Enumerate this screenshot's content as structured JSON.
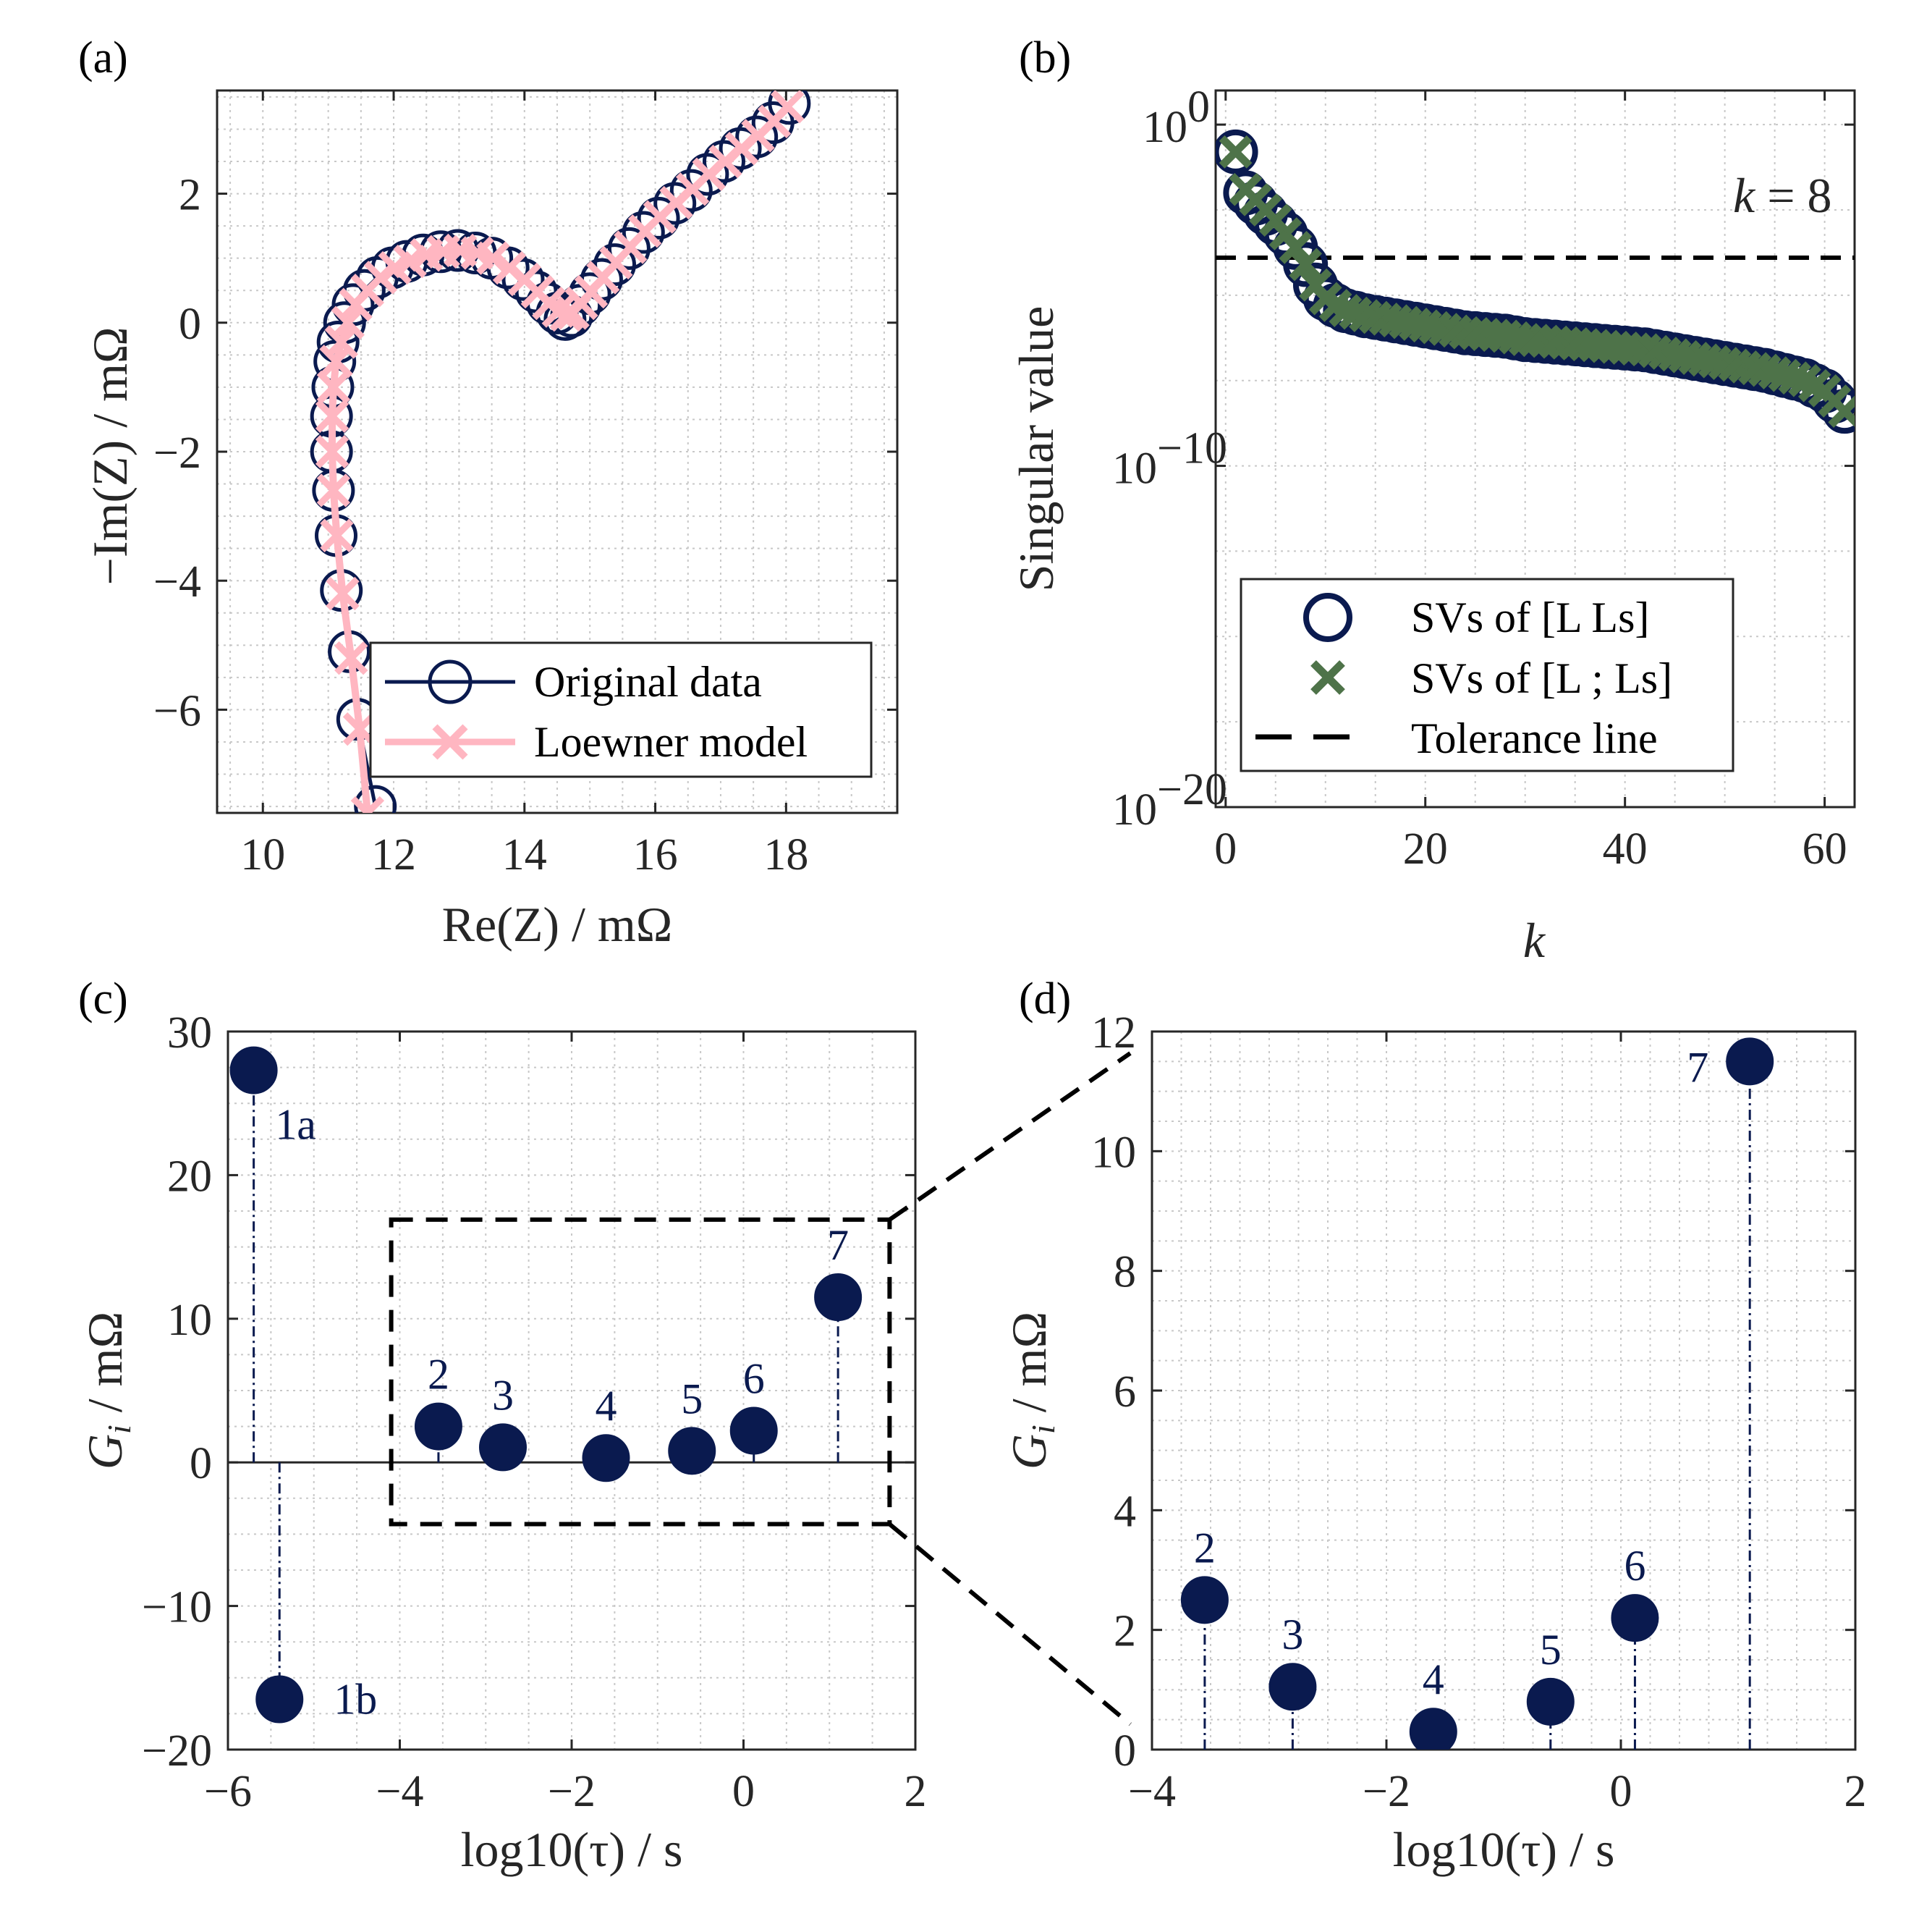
{
  "colors": {
    "navy": "#0a1a4f",
    "pink": "#ffb6c1",
    "green": "#4e7349",
    "grid": "#c8c8c8",
    "axis": "#262626"
  },
  "chart_data": [
    {
      "panel": "(a)",
      "type": "line",
      "xlabel": "Re(Z) / mΩ",
      "ylabel": "−Im(Z) / mΩ",
      "xlim": [
        9.3,
        19.7
      ],
      "ylim": [
        -7.6,
        3.6
      ],
      "xticks": [
        10,
        12,
        14,
        16,
        18
      ],
      "yticks": [
        -6,
        -4,
        -2,
        0,
        2
      ],
      "xtick_labels": [
        "10",
        "12",
        "14",
        "16",
        "18"
      ],
      "ytick_labels": [
        "−6",
        "−4",
        "−2",
        "0",
        "2"
      ],
      "grid": "minor dotted",
      "legend_position": "bottom-right",
      "series": [
        {
          "name": "Original data",
          "marker": "circle",
          "points": [
            [
              11.72,
              -7.5
            ],
            [
              11.45,
              -6.15
            ],
            [
              11.32,
              -5.1
            ],
            [
              11.2,
              -4.15
            ],
            [
              11.12,
              -3.3
            ],
            [
              11.08,
              -2.6
            ],
            [
              11.05,
              -2.0
            ],
            [
              11.05,
              -1.45
            ],
            [
              11.07,
              -1.0
            ],
            [
              11.1,
              -0.6
            ],
            [
              11.15,
              -0.3
            ],
            [
              11.25,
              0.0
            ],
            [
              11.38,
              0.28
            ],
            [
              11.55,
              0.5
            ],
            [
              11.75,
              0.7
            ],
            [
              11.98,
              0.85
            ],
            [
              12.2,
              0.95
            ],
            [
              12.45,
              1.05
            ],
            [
              12.72,
              1.1
            ],
            [
              12.98,
              1.12
            ],
            [
              13.25,
              1.08
            ],
            [
              13.5,
              1.0
            ],
            [
              13.75,
              0.85
            ],
            [
              13.98,
              0.67
            ],
            [
              14.18,
              0.48
            ],
            [
              14.35,
              0.3
            ],
            [
              14.5,
              0.15
            ],
            [
              14.62,
              0.05
            ],
            [
              14.72,
              0.1
            ],
            [
              14.85,
              0.27
            ],
            [
              15.0,
              0.45
            ],
            [
              15.18,
              0.67
            ],
            [
              15.38,
              0.9
            ],
            [
              15.6,
              1.15
            ],
            [
              15.82,
              1.4
            ],
            [
              16.05,
              1.62
            ],
            [
              16.3,
              1.85
            ],
            [
              16.55,
              2.05
            ],
            [
              16.8,
              2.3
            ],
            [
              17.05,
              2.5
            ],
            [
              17.3,
              2.7
            ],
            [
              17.55,
              2.88
            ],
            [
              17.8,
              3.1
            ],
            [
              18.05,
              3.4
            ]
          ]
        },
        {
          "name": "Loewner model",
          "marker": "x",
          "points": [
            [
              11.6,
              -7.6
            ],
            [
              11.48,
              -6.3
            ],
            [
              11.35,
              -5.2
            ],
            [
              11.22,
              -4.2
            ],
            [
              11.13,
              -3.3
            ],
            [
              11.08,
              -2.6
            ],
            [
              11.06,
              -2.0
            ],
            [
              11.06,
              -1.45
            ],
            [
              11.08,
              -1.0
            ],
            [
              11.12,
              -0.6
            ],
            [
              11.2,
              -0.3
            ],
            [
              11.3,
              0.0
            ],
            [
              11.42,
              0.28
            ],
            [
              11.6,
              0.5
            ],
            [
              11.8,
              0.7
            ],
            [
              12.02,
              0.85
            ],
            [
              12.25,
              0.95
            ],
            [
              12.5,
              1.05
            ],
            [
              12.76,
              1.1
            ],
            [
              13.02,
              1.12
            ],
            [
              13.28,
              1.08
            ],
            [
              13.52,
              1.0
            ],
            [
              13.77,
              0.85
            ],
            [
              14.0,
              0.67
            ],
            [
              14.2,
              0.48
            ],
            [
              14.37,
              0.3
            ],
            [
              14.52,
              0.18
            ],
            [
              14.64,
              0.12
            ],
            [
              14.74,
              0.15
            ],
            [
              14.87,
              0.3
            ],
            [
              15.02,
              0.48
            ],
            [
              15.2,
              0.7
            ],
            [
              15.4,
              0.93
            ],
            [
              15.62,
              1.17
            ],
            [
              15.84,
              1.42
            ],
            [
              16.07,
              1.64
            ],
            [
              16.32,
              1.86
            ],
            [
              16.57,
              2.07
            ],
            [
              16.82,
              2.3
            ],
            [
              17.07,
              2.5
            ],
            [
              17.32,
              2.7
            ],
            [
              17.57,
              2.9
            ],
            [
              17.82,
              3.12
            ],
            [
              18.02,
              3.35
            ]
          ]
        }
      ]
    },
    {
      "panel": "(b)",
      "type": "scatter",
      "xlabel": "k",
      "ylabel": "Singular value",
      "xlim": [
        -1,
        63
      ],
      "ylim_log10": [
        -20,
        1
      ],
      "yscale": "log",
      "xticks": [
        0,
        20,
        40,
        60
      ],
      "xtick_labels": [
        "0",
        "20",
        "40",
        "60"
      ],
      "yticks_log10": [
        0,
        -10,
        -20
      ],
      "ytick_labels": [
        {
          "base": "10",
          "exp": "0"
        },
        {
          "base": "10",
          "exp": "−10"
        },
        {
          "base": "10",
          "exp": "−20"
        }
      ],
      "grid": "minor dotted",
      "legend_position": "bottom-right",
      "annotation": {
        "k": "k",
        "rest": " = 8"
      },
      "tolerance_log10": -3.9,
      "series": [
        {
          "name": "SVs of [L Ls]",
          "marker": "circle",
          "x": [
            1,
            2,
            3,
            4,
            5,
            6,
            7,
            8,
            9,
            10,
            11,
            12,
            14,
            16,
            18,
            20,
            22,
            24,
            26,
            28,
            30,
            32,
            34,
            36,
            38,
            40,
            42,
            44,
            46,
            48,
            50,
            52,
            54,
            56,
            58,
            60,
            61,
            62
          ],
          "log10_values": [
            -0.8,
            -2.0,
            -2.3,
            -2.6,
            -2.9,
            -3.2,
            -3.6,
            -4.1,
            -4.7,
            -5.1,
            -5.3,
            -5.45,
            -5.6,
            -5.7,
            -5.8,
            -5.9,
            -6.0,
            -6.1,
            -6.15,
            -6.2,
            -6.3,
            -6.35,
            -6.4,
            -6.45,
            -6.5,
            -6.55,
            -6.6,
            -6.7,
            -6.8,
            -6.9,
            -7.0,
            -7.1,
            -7.2,
            -7.35,
            -7.5,
            -7.8,
            -8.1,
            -8.4
          ]
        },
        {
          "name": "SVs of [L ; Ls]",
          "marker": "x",
          "x": [
            1,
            2,
            3,
            4,
            5,
            6,
            7,
            8,
            9,
            10,
            11,
            12,
            14,
            16,
            18,
            20,
            22,
            24,
            26,
            28,
            30,
            32,
            34,
            36,
            38,
            40,
            42,
            44,
            46,
            48,
            50,
            52,
            54,
            56,
            58,
            60,
            61,
            62
          ],
          "log10_values": [
            -0.8,
            -1.9,
            -2.2,
            -2.5,
            -2.8,
            -3.2,
            -3.6,
            -4.1,
            -4.7,
            -5.1,
            -5.3,
            -5.45,
            -5.6,
            -5.7,
            -5.8,
            -5.9,
            -6.0,
            -6.1,
            -6.15,
            -6.2,
            -6.3,
            -6.35,
            -6.4,
            -6.45,
            -6.5,
            -6.55,
            -6.6,
            -6.7,
            -6.8,
            -6.9,
            -7.0,
            -7.1,
            -7.2,
            -7.35,
            -7.5,
            -7.8,
            -8.1,
            -8.4
          ]
        },
        {
          "name": "Tolerance line",
          "marker": "dashed line"
        }
      ]
    },
    {
      "panel": "(c)",
      "type": "scatter",
      "xlabel": "log10(τ) / s",
      "ylabel": "G",
      "ylabel_sub": "i",
      "ylabel_unit": " / mΩ",
      "xlim": [
        -6,
        2
      ],
      "ylim": [
        -20,
        30
      ],
      "xticks": [
        -6,
        -4,
        -2,
        0,
        2
      ],
      "yticks": [
        -20,
        -10,
        0,
        10,
        20,
        30
      ],
      "xtick_labels": [
        "−6",
        "−4",
        "−2",
        "0",
        "2"
      ],
      "ytick_labels": [
        "−20",
        "−10",
        "0",
        "10",
        "20",
        "30"
      ],
      "grid": "minor dotted",
      "zoom_box": {
        "x": [
          -4.1,
          1.7
        ],
        "y": [
          -4.3,
          16.9
        ]
      },
      "points": [
        {
          "label": "1a",
          "x": -5.7,
          "y": 27.3
        },
        {
          "label": "1b",
          "x": -5.4,
          "y": -16.5
        },
        {
          "label": "2",
          "x": -3.55,
          "y": 2.5
        },
        {
          "label": "3",
          "x": -2.8,
          "y": 1.05
        },
        {
          "label": "4",
          "x": -1.6,
          "y": 0.3
        },
        {
          "label": "5",
          "x": -0.6,
          "y": 0.8
        },
        {
          "label": "6",
          "x": 0.12,
          "y": 2.2
        },
        {
          "label": "7",
          "x": 1.1,
          "y": 11.5
        }
      ]
    },
    {
      "panel": "(d)",
      "type": "scatter",
      "xlabel": "log10(τ) / s",
      "ylabel": "G",
      "ylabel_sub": "i",
      "ylabel_unit": " / mΩ",
      "xlim": [
        -4,
        2
      ],
      "ylim": [
        0,
        12
      ],
      "xticks": [
        -4,
        -2,
        0,
        2
      ],
      "yticks": [
        0,
        2,
        4,
        6,
        8,
        10,
        12
      ],
      "xtick_labels": [
        "−4",
        "−2",
        "0",
        "2"
      ],
      "ytick_labels": [
        "0",
        "2",
        "4",
        "6",
        "8",
        "10",
        "12"
      ],
      "grid": "minor dotted",
      "points": [
        {
          "label": "2",
          "x": -3.55,
          "y": 2.5
        },
        {
          "label": "3",
          "x": -2.8,
          "y": 1.05
        },
        {
          "label": "4",
          "x": -1.6,
          "y": 0.3
        },
        {
          "label": "5",
          "x": -0.6,
          "y": 0.8
        },
        {
          "label": "6",
          "x": 0.12,
          "y": 2.2
        },
        {
          "label": "7",
          "x": 1.1,
          "y": 11.5
        }
      ]
    }
  ]
}
